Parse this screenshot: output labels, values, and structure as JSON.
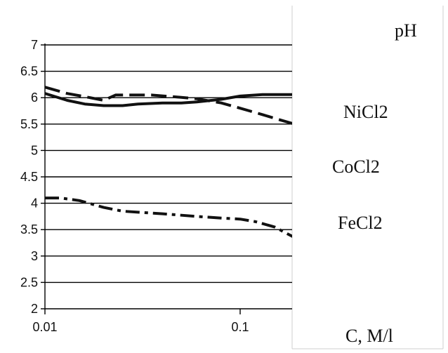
{
  "chart_data": {
    "type": "line",
    "x_scale": "log",
    "xlim": [
      0.01,
      0.19
    ],
    "ylim": [
      2,
      7
    ],
    "x_ticks": [
      {
        "value": 0.01,
        "label": "0.01"
      },
      {
        "value": 0.1,
        "label": "0.1"
      }
    ],
    "y_ticks": [
      {
        "value": 2,
        "label": "2"
      },
      {
        "value": 2.5,
        "label": "2.5"
      },
      {
        "value": 3,
        "label": "3"
      },
      {
        "value": 3.5,
        "label": "3.5"
      },
      {
        "value": 4,
        "label": "4"
      },
      {
        "value": 4.5,
        "label": "4.5"
      },
      {
        "value": 5,
        "label": "5"
      },
      {
        "value": 5.5,
        "label": "5.5"
      },
      {
        "value": 6,
        "label": "6"
      },
      {
        "value": 6.5,
        "label": "6.5"
      },
      {
        "value": 7,
        "label": "7"
      }
    ],
    "ylabel": "pH",
    "xlabel": "C, M/l",
    "grid": "horizontal",
    "series": [
      {
        "name": "NiCl2",
        "style": "solid",
        "x": [
          0.01,
          0.013,
          0.016,
          0.02,
          0.025,
          0.03,
          0.04,
          0.05,
          0.06,
          0.08,
          0.1,
          0.13,
          0.16,
          0.19
        ],
        "y": [
          6.08,
          5.95,
          5.88,
          5.85,
          5.85,
          5.88,
          5.9,
          5.9,
          5.92,
          5.97,
          6.03,
          6.06,
          6.06,
          6.06
        ]
      },
      {
        "name": "CoCl2",
        "style": "dashed",
        "x": [
          0.01,
          0.013,
          0.016,
          0.02,
          0.023,
          0.028,
          0.035,
          0.045,
          0.06,
          0.08,
          0.1,
          0.13,
          0.16,
          0.19
        ],
        "y": [
          6.2,
          6.08,
          6.02,
          5.95,
          6.05,
          6.05,
          6.05,
          6.02,
          5.98,
          5.9,
          5.8,
          5.68,
          5.58,
          5.5
        ]
      },
      {
        "name": "FeCl2",
        "style": "dash-dot",
        "x": [
          0.01,
          0.012,
          0.015,
          0.02,
          0.025,
          0.03,
          0.04,
          0.06,
          0.08,
          0.1,
          0.12,
          0.15,
          0.19
        ],
        "y": [
          4.1,
          4.1,
          4.05,
          3.92,
          3.85,
          3.83,
          3.8,
          3.75,
          3.72,
          3.7,
          3.65,
          3.55,
          3.35
        ]
      }
    ],
    "colors": {
      "line": "#111111",
      "grid": "#000000",
      "panel_border": "#c9c9c9",
      "background": "#ffffff"
    }
  }
}
